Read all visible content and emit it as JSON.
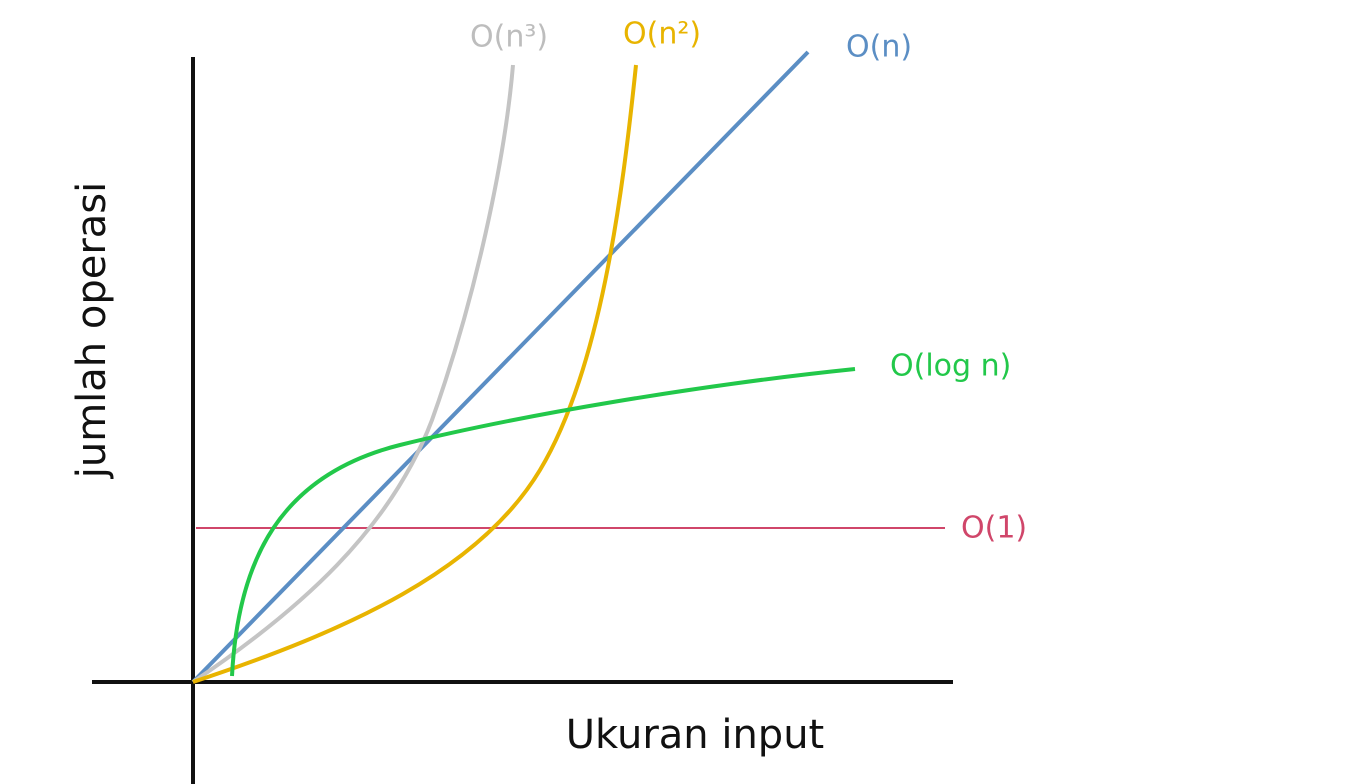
{
  "x_axis_label": "Ukuran input",
  "y_axis_label": "jumlah operasi",
  "curves": [
    {
      "label": "O(n³)"
    },
    {
      "label": "O(n²)"
    },
    {
      "label": "O(n)"
    },
    {
      "label": "O(log n)"
    },
    {
      "label": "O(1)"
    }
  ]
}
